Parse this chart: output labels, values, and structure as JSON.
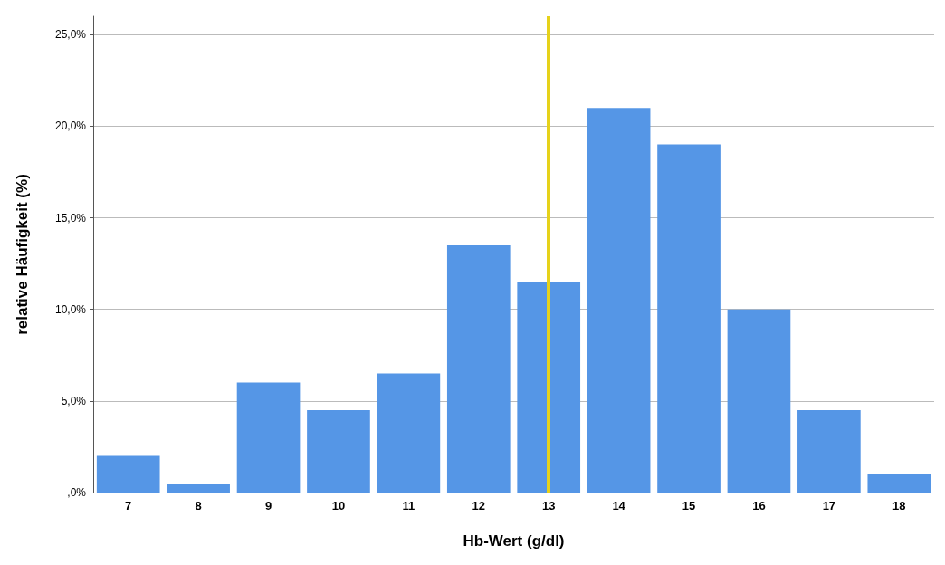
{
  "chart_data": {
    "type": "bar",
    "xlabel": "Hb-Wert (g/dl)",
    "ylabel": "relative Häufigkeit (%)",
    "categories": [
      "7",
      "8",
      "9",
      "10",
      "11",
      "12",
      "13",
      "14",
      "15",
      "16",
      "17",
      "18"
    ],
    "values": [
      2.0,
      0.5,
      6.0,
      4.5,
      6.5,
      13.5,
      11.5,
      21.0,
      19.0,
      10.0,
      4.5,
      1.0
    ],
    "color": "#5596e6",
    "ylim": [
      0,
      26
    ],
    "yticks": [
      {
        "value": 0,
        "label": ",0%"
      },
      {
        "value": 5,
        "label": "5,0%"
      },
      {
        "value": 10,
        "label": "10,0%"
      },
      {
        "value": 15,
        "label": "15,0%"
      },
      {
        "value": 20,
        "label": "20,0%"
      },
      {
        "value": 25,
        "label": "25,0%"
      }
    ],
    "grid": "y",
    "ref_lines": [
      {
        "axis": "x",
        "value": "13",
        "color": "#e6d21a"
      }
    ]
  }
}
